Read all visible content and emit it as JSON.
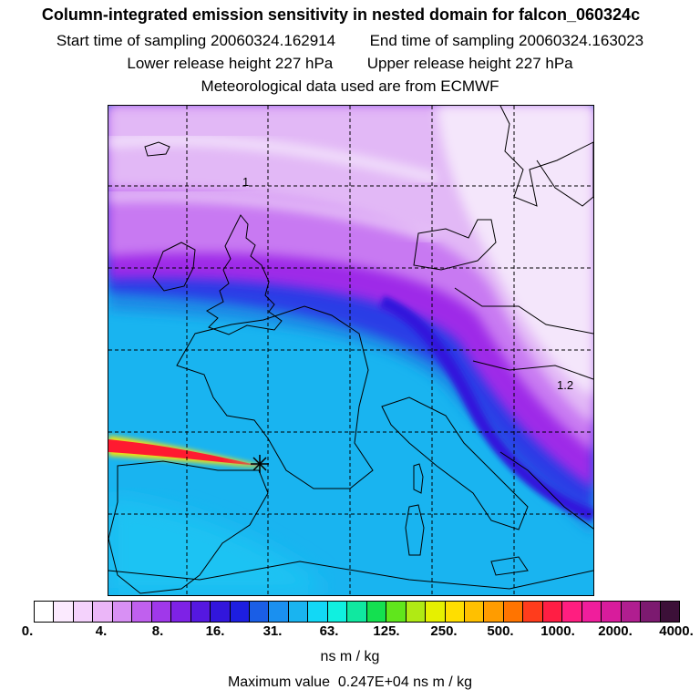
{
  "title": {
    "line1": "Column-integrated emission sensitivity in nested domain for falcon_060324c",
    "start_label": "Start time of sampling",
    "start_value": "20060324.162914",
    "end_label": "End time of sampling",
    "end_value": "20060324.163023",
    "lower_label": "Lower release height",
    "lower_value": "227 hPa",
    "upper_label": "Upper release height",
    "upper_value": "227 hPa",
    "met_line": "Meteorological data used are from ECMWF"
  },
  "map": {
    "contour_labels": [
      "1",
      "1.2"
    ],
    "release_marker": "release-point-star",
    "field_colors": {
      "ocean_south": "#19b4f0",
      "band_blue": "#2a3ae6",
      "band_violet": "#9a28e6",
      "north_magenta": "#c77cf0",
      "pale": "#f2e4fb",
      "plume_red": "#ff1a30",
      "plume_yellow": "#ffe400"
    }
  },
  "colorbar": {
    "colors": [
      "#ffffff",
      "#fbeafe",
      "#f4d2fc",
      "#ebb6f8",
      "#d890f4",
      "#c060ee",
      "#a038ea",
      "#7e22e6",
      "#5518e0",
      "#3216dc",
      "#1d1ee0",
      "#1a5ee6",
      "#1a90f0",
      "#19b4f0",
      "#12d8f6",
      "#10f0e0",
      "#10e8a0",
      "#14e050",
      "#60e61c",
      "#b0ea14",
      "#e6f000",
      "#ffde00",
      "#ffc000",
      "#ff9c00",
      "#ff7400",
      "#ff3c1c",
      "#ff1e44",
      "#ff1e80",
      "#f01e9c",
      "#d81c9c",
      "#b01e90",
      "#7c1a70",
      "#3c1038"
    ],
    "tick_labels": [
      "0.",
      "4.",
      "8.",
      "16.",
      "31.",
      "63.",
      "125.",
      "250.",
      "500.",
      "1000.",
      "2000.",
      "4000."
    ],
    "units": "ns m / kg"
  },
  "footer": {
    "max_label": "Maximum value",
    "max_value": "0.247E+04 ns m / kg"
  }
}
